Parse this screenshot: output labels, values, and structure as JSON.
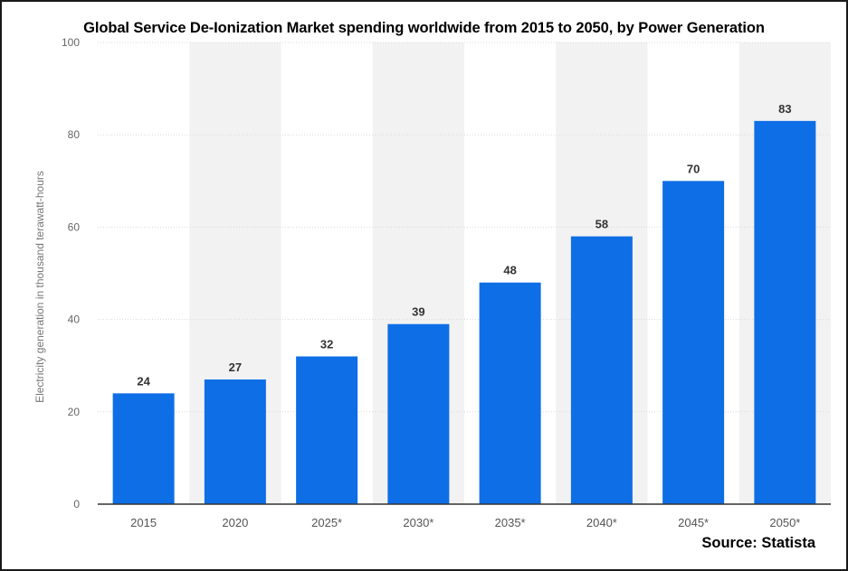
{
  "chart_data": {
    "type": "bar",
    "title": "Global Service De-Ionization Market spending worldwide from 2015 to 2050, by Power Generation",
    "ylabel": "Electricity generation in thousand terawatt-hours",
    "xlabel": "",
    "categories": [
      "2015",
      "2020",
      "2025*",
      "2030*",
      "2035*",
      "2040*",
      "2045*",
      "2050*"
    ],
    "values": [
      24,
      27,
      32,
      39,
      48,
      58,
      70,
      83
    ],
    "ylim": [
      0,
      100
    ],
    "yticks": [
      0,
      20,
      40,
      60,
      80,
      100
    ],
    "grid": true,
    "bar_color": "#0e6ee6",
    "alt_band_color": "#f2f2f2",
    "source": "Source: Statista"
  }
}
